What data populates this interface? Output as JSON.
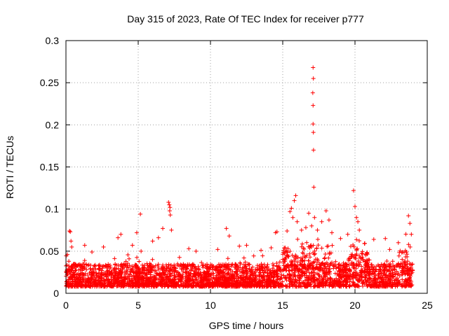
{
  "chart_data": {
    "type": "scatter",
    "title": "Day 315 of 2023, Rate Of TEC Index for receiver p777",
    "xlabel": "GPS time / hours",
    "ylabel": "ROTI / TECUs",
    "xlim": [
      0,
      25
    ],
    "ylim": [
      0,
      0.3
    ],
    "xticks": [
      0,
      5,
      10,
      15,
      20,
      25
    ],
    "yticks": [
      0,
      0.05,
      0.1,
      0.15,
      0.2,
      0.25,
      0.3
    ],
    "xtick_labels": [
      "0",
      "5",
      "10",
      "15",
      "20",
      "25"
    ],
    "ytick_labels": [
      "0",
      "0.05",
      "0.1",
      "0.15",
      "0.2",
      "0.25",
      "0.3"
    ],
    "grid": true,
    "marker": "+",
    "color": "#ff0000",
    "series": [
      {
        "name": "ROTI",
        "points": [
          [
            0.1,
            0.046
          ],
          [
            0.2,
            0.038
          ],
          [
            0.25,
            0.074
          ],
          [
            0.3,
            0.073
          ],
          [
            0.35,
            0.062
          ],
          [
            0.4,
            0.055
          ],
          [
            1.3,
            0.057
          ],
          [
            1.8,
            0.049
          ],
          [
            2.6,
            0.055
          ],
          [
            3.6,
            0.066
          ],
          [
            3.8,
            0.07
          ],
          [
            4.6,
            0.057
          ],
          [
            4.9,
            0.072
          ],
          [
            5.15,
            0.094
          ],
          [
            5.2,
            0.05
          ],
          [
            6.0,
            0.062
          ],
          [
            6.4,
            0.066
          ],
          [
            6.7,
            0.077
          ],
          [
            7.1,
            0.108
          ],
          [
            7.15,
            0.105
          ],
          [
            7.2,
            0.102
          ],
          [
            7.18,
            0.098
          ],
          [
            7.22,
            0.093
          ],
          [
            7.3,
            0.075
          ],
          [
            8.5,
            0.053
          ],
          [
            9.0,
            0.05
          ],
          [
            10.5,
            0.052
          ],
          [
            11.1,
            0.077
          ],
          [
            11.3,
            0.068
          ],
          [
            12.0,
            0.056
          ],
          [
            12.5,
            0.057
          ],
          [
            13.5,
            0.051
          ],
          [
            14.2,
            0.054
          ],
          [
            14.5,
            0.072
          ],
          [
            14.6,
            0.073
          ],
          [
            15.3,
            0.074
          ],
          [
            15.5,
            0.097
          ],
          [
            15.6,
            0.101
          ],
          [
            15.7,
            0.09
          ],
          [
            15.8,
            0.11
          ],
          [
            15.9,
            0.116
          ],
          [
            16.0,
            0.085
          ],
          [
            16.3,
            0.075
          ],
          [
            16.6,
            0.078
          ],
          [
            16.8,
            0.095
          ],
          [
            17.0,
            0.08
          ],
          [
            17.1,
            0.268
          ],
          [
            17.12,
            0.255
          ],
          [
            17.08,
            0.238
          ],
          [
            17.1,
            0.223
          ],
          [
            17.1,
            0.201
          ],
          [
            17.12,
            0.191
          ],
          [
            17.13,
            0.17
          ],
          [
            17.15,
            0.126
          ],
          [
            17.2,
            0.09
          ],
          [
            17.4,
            0.075
          ],
          [
            17.7,
            0.085
          ],
          [
            18.0,
            0.098
          ],
          [
            18.2,
            0.087
          ],
          [
            18.4,
            0.072
          ],
          [
            19.0,
            0.065
          ],
          [
            19.5,
            0.07
          ],
          [
            19.9,
            0.122
          ],
          [
            20.0,
            0.103
          ],
          [
            20.1,
            0.09
          ],
          [
            20.2,
            0.085
          ],
          [
            20.3,
            0.075
          ],
          [
            21.3,
            0.064
          ],
          [
            22.1,
            0.065
          ],
          [
            22.4,
            0.052
          ],
          [
            23.0,
            0.06
          ],
          [
            23.7,
            0.092
          ],
          [
            23.8,
            0.083
          ],
          [
            23.9,
            0.07
          ]
        ]
      }
    ],
    "baseline_band": {
      "x_range": [
        0,
        24
      ],
      "typical_low": 0.008,
      "typical_high": 0.035,
      "note": "dense cloud of + markers between these ROTI values across the whole day"
    }
  }
}
